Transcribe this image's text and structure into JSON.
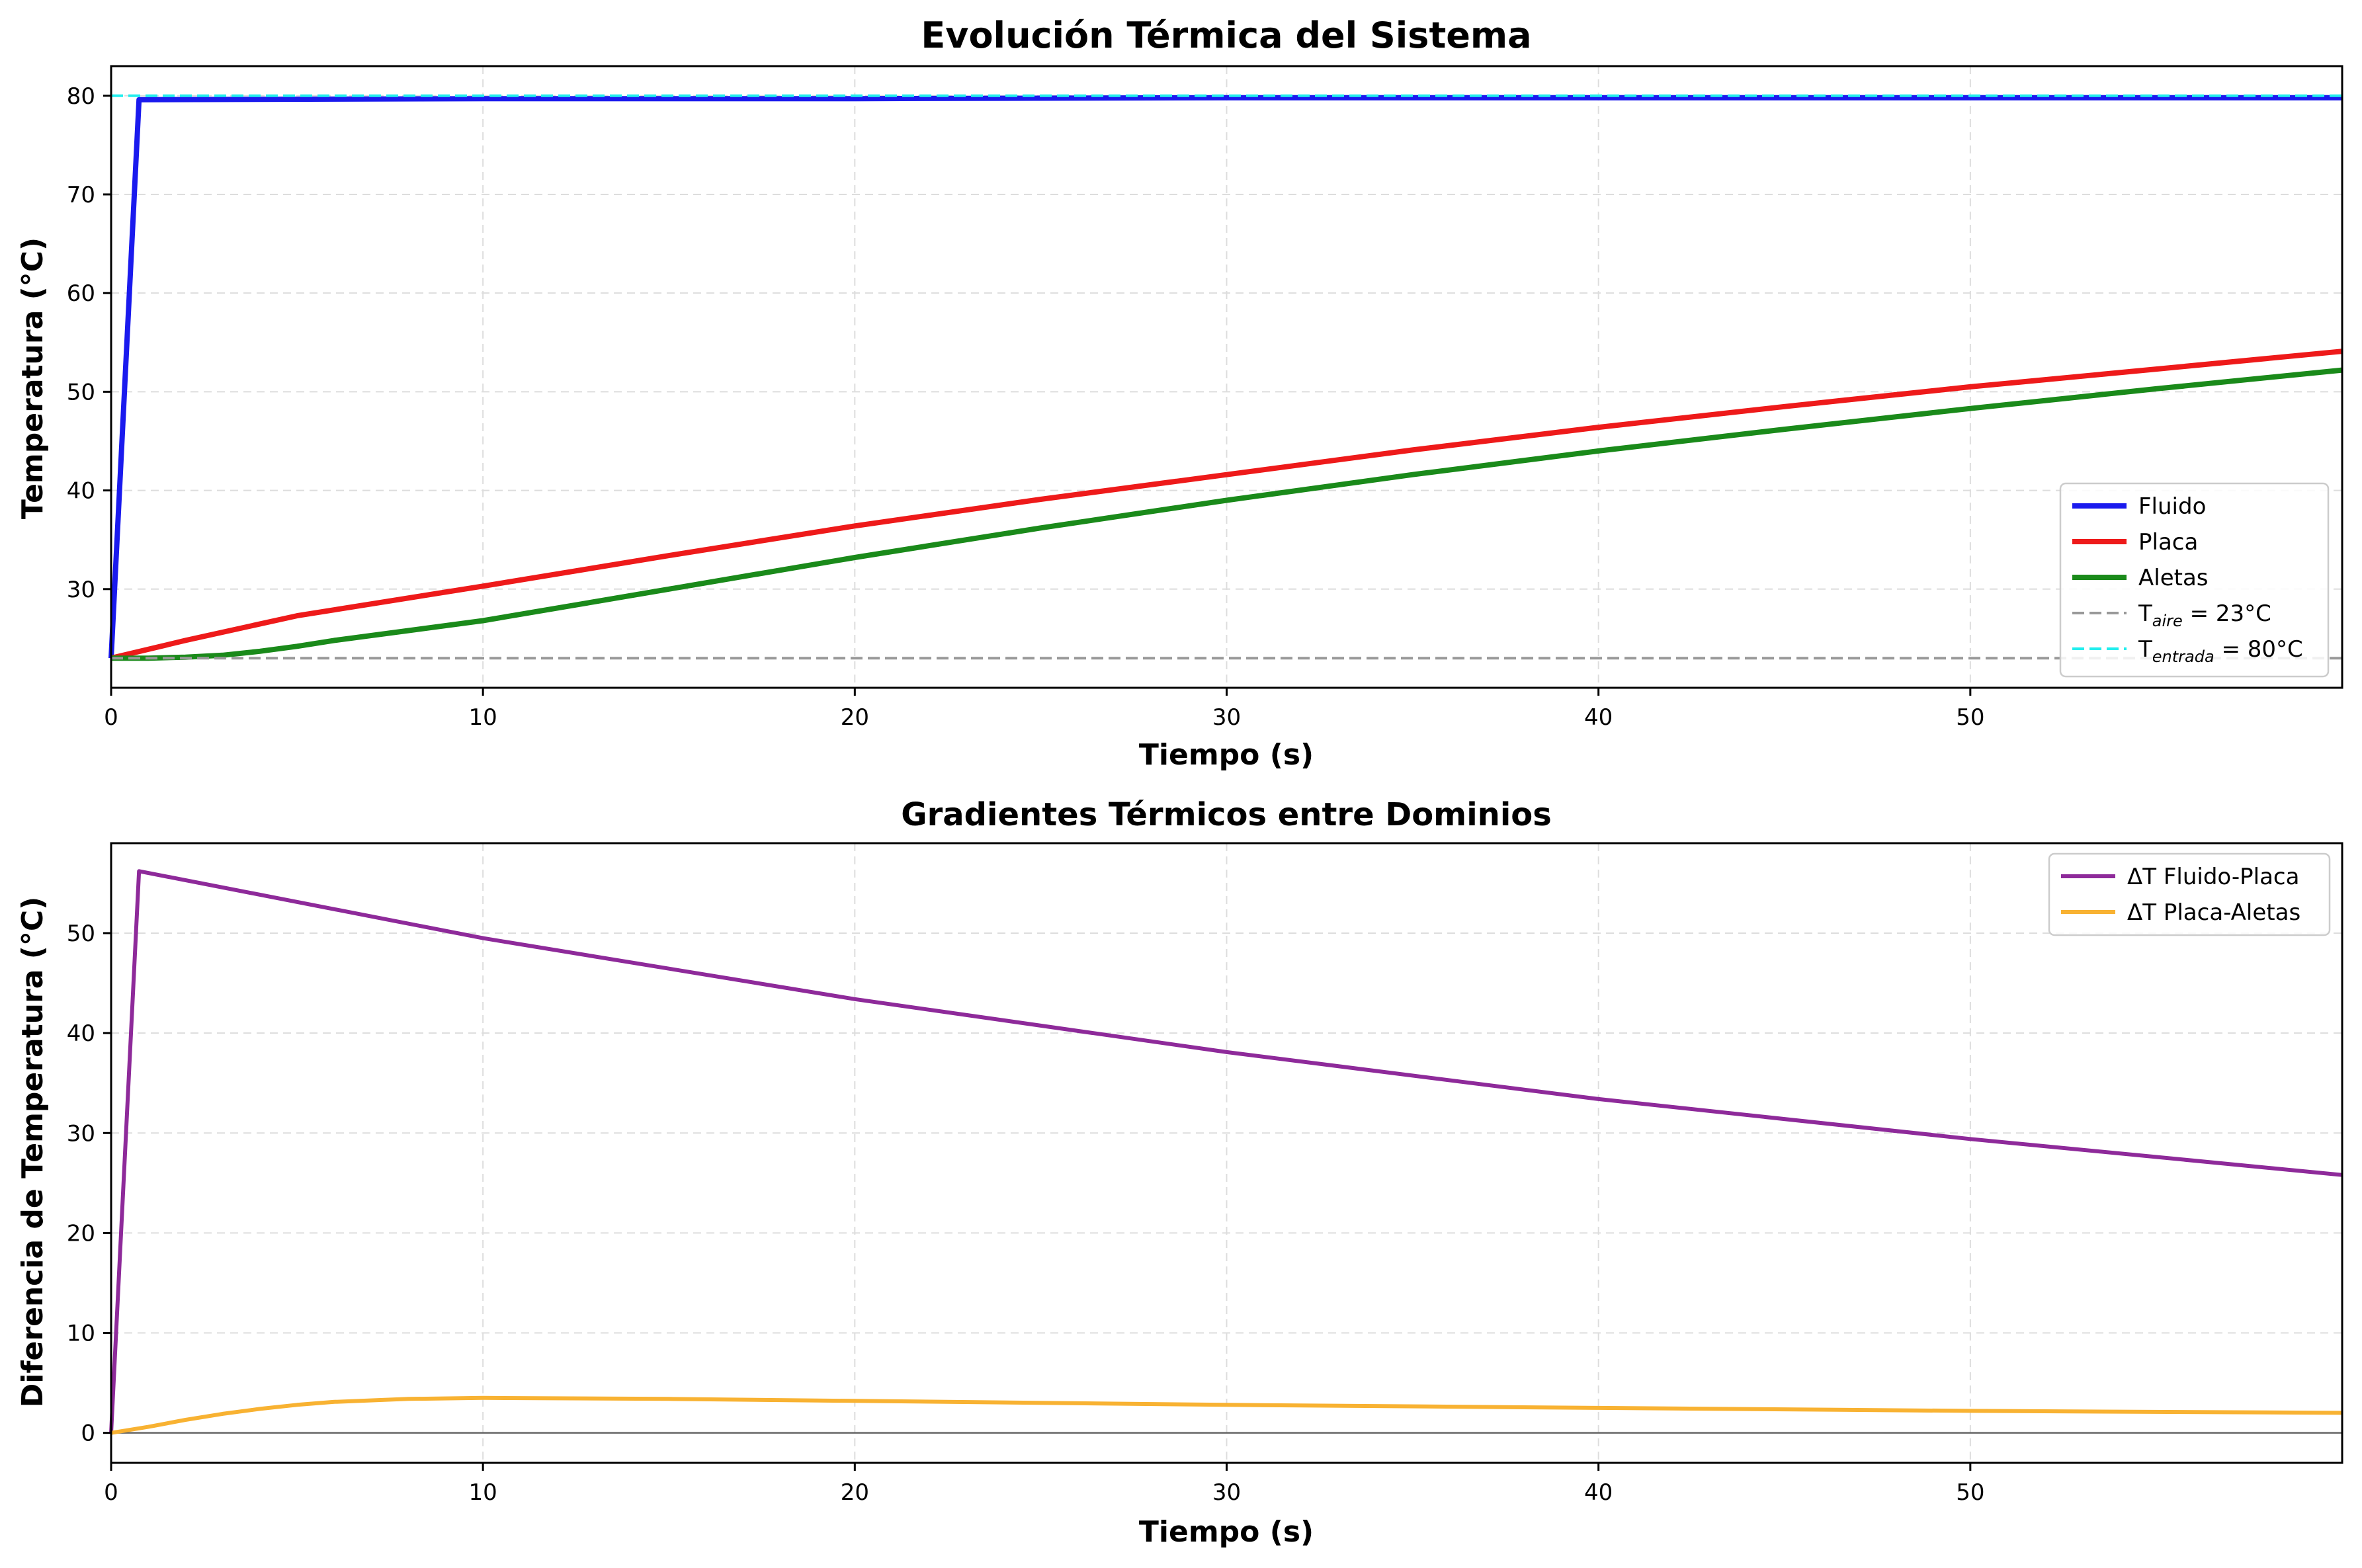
{
  "chart_data": [
    {
      "type": "line",
      "title": "Evolución Térmica del Sistema",
      "xlabel": "Tiempo (s)",
      "ylabel": "Temperatura (°C)",
      "xlim": [
        0,
        60
      ],
      "ylim": [
        20,
        83
      ],
      "xticks": [
        0,
        10,
        20,
        30,
        40,
        50
      ],
      "yticks": [
        30,
        40,
        50,
        60,
        70,
        80
      ],
      "grid": true,
      "legend_position": "lower-right",
      "series": [
        {
          "name": "Fluido",
          "color": "#1a1aee",
          "style": "solid",
          "x": [
            0,
            0.75,
            10,
            20,
            30,
            40,
            50,
            60
          ],
          "y": [
            23,
            79.6,
            79.7,
            79.7,
            79.8,
            79.8,
            79.8,
            79.8
          ]
        },
        {
          "name": "Placa",
          "color": "#ee1a1a",
          "style": "solid",
          "x": [
            0,
            2,
            5,
            10,
            15,
            20,
            25,
            30,
            35,
            40,
            45,
            50,
            55,
            60
          ],
          "y": [
            23,
            24.8,
            27.3,
            30.3,
            33.4,
            36.4,
            39.1,
            41.6,
            44.1,
            46.4,
            48.5,
            50.5,
            52.3,
            54.1
          ]
        },
        {
          "name": "Aletas",
          "color": "#1a8a1a",
          "style": "solid",
          "x": [
            0,
            1,
            2,
            3,
            4,
            5,
            6,
            8,
            10,
            15,
            20,
            25,
            30,
            35,
            40,
            45,
            50,
            55,
            60
          ],
          "y": [
            23,
            23.0,
            23.1,
            23.3,
            23.7,
            24.2,
            24.8,
            25.8,
            26.8,
            30.0,
            33.2,
            36.2,
            39.0,
            41.6,
            44.0,
            46.2,
            48.3,
            50.3,
            52.2
          ]
        },
        {
          "name": "T_aire = 23°C",
          "color": "#999999",
          "style": "dashed",
          "x": [
            0,
            60
          ],
          "y": [
            23,
            23
          ]
        },
        {
          "name": "T_entrada = 80°C",
          "color": "#22eeee",
          "style": "dashed",
          "x": [
            0,
            60
          ],
          "y": [
            80,
            80
          ]
        }
      ],
      "legend": [
        {
          "series": 0,
          "main": "Fluido",
          "sub": "",
          "tail": ""
        },
        {
          "series": 1,
          "main": "Placa",
          "sub": "",
          "tail": ""
        },
        {
          "series": 2,
          "main": "Aletas",
          "sub": "",
          "tail": ""
        },
        {
          "series": 3,
          "main": "T",
          "sub": "aire",
          "tail": " = 23°C"
        },
        {
          "series": 4,
          "main": "T",
          "sub": "entrada",
          "tail": " = 80°C"
        }
      ]
    },
    {
      "type": "line",
      "title": "Gradientes Térmicos entre Dominios",
      "xlabel": "Tiempo (s)",
      "ylabel": "Diferencia de Temperatura (°C)",
      "xlim": [
        0,
        60
      ],
      "ylim": [
        -3,
        59
      ],
      "xticks": [
        0,
        10,
        20,
        30,
        40,
        50
      ],
      "yticks": [
        0,
        10,
        20,
        30,
        40,
        50
      ],
      "grid": true,
      "legend_position": "top-right",
      "zero_line": true,
      "series": [
        {
          "name": "ΔT Fluido-Placa",
          "color": "#8e2a9a",
          "style": "solid",
          "x": [
            0,
            0.75,
            10,
            20,
            30,
            40,
            50,
            60
          ],
          "y": [
            0,
            56.2,
            49.5,
            43.4,
            38.1,
            33.4,
            29.4,
            25.8
          ]
        },
        {
          "name": "ΔT Placa-Aletas",
          "color": "#f8b232",
          "style": "solid",
          "x": [
            0,
            1,
            2,
            3,
            4,
            5,
            6,
            8,
            10,
            15,
            20,
            30,
            40,
            50,
            60
          ],
          "y": [
            0,
            0.6,
            1.3,
            1.9,
            2.4,
            2.8,
            3.1,
            3.4,
            3.5,
            3.4,
            3.2,
            2.8,
            2.5,
            2.2,
            2.0
          ]
        }
      ],
      "legend": [
        {
          "series": 0,
          "main": "ΔT Fluido-Placa",
          "sub": "",
          "tail": ""
        },
        {
          "series": 1,
          "main": "ΔT Placa-Aletas",
          "sub": "",
          "tail": ""
        }
      ]
    }
  ]
}
